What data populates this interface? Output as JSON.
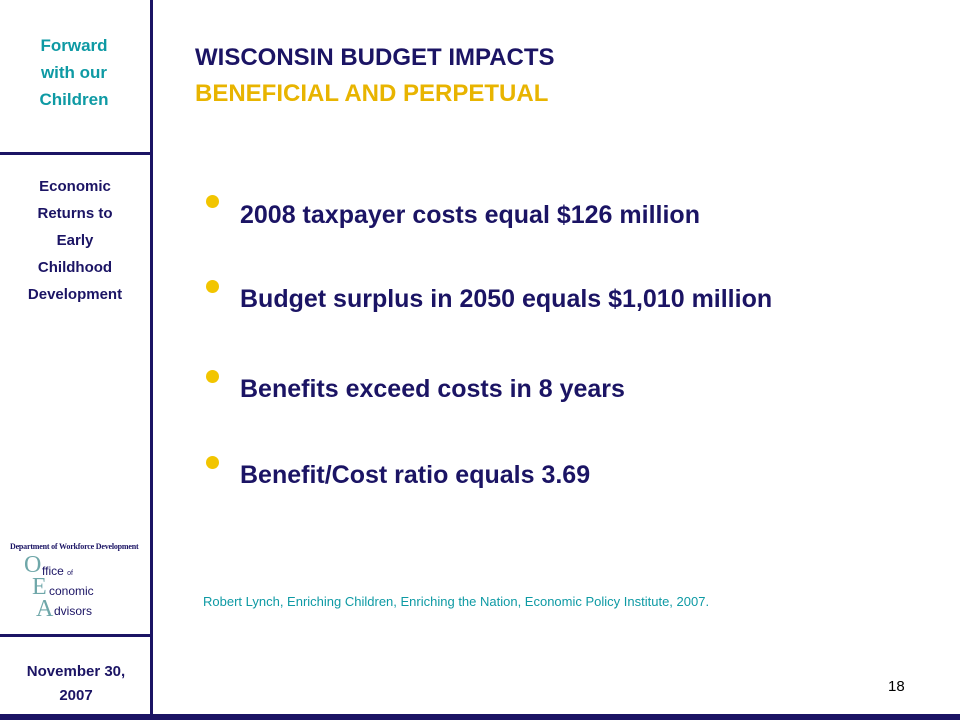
{
  "sidebar": {
    "title": "Forward\nwith our\nChildren",
    "subtitle": "Economic\nReturns to\nEarly\nChildhood\nDevelopment",
    "logo": {
      "dept": "Department of Workforce Development",
      "letter_o": "O",
      "word_o": "ffice",
      "of": "of",
      "letter_e": "E",
      "word_e": "conomic",
      "letter_a": "A",
      "word_a": "dvisors"
    },
    "date": "November 30,\n2007"
  },
  "slide": {
    "title_line1": "WISCONSIN BUDGET IMPACTS",
    "title_line2": "BENEFICIAL AND PERPETUAL",
    "bullets": [
      "2008 taxpayer costs equal $126 million",
      "Budget surplus in 2050 equals $1,010 million",
      "Benefits exceed costs in 8 years",
      "Benefit/Cost ratio equals 3.69"
    ],
    "citation": "Robert Lynch, Enriching Children, Enriching the Nation, Economic Policy Institute, 2007.",
    "page_number": "18"
  },
  "colors": {
    "navy": "#1b1464",
    "teal": "#0e9aa4",
    "gold": "#e8b400",
    "bullet": "#f2c500"
  }
}
